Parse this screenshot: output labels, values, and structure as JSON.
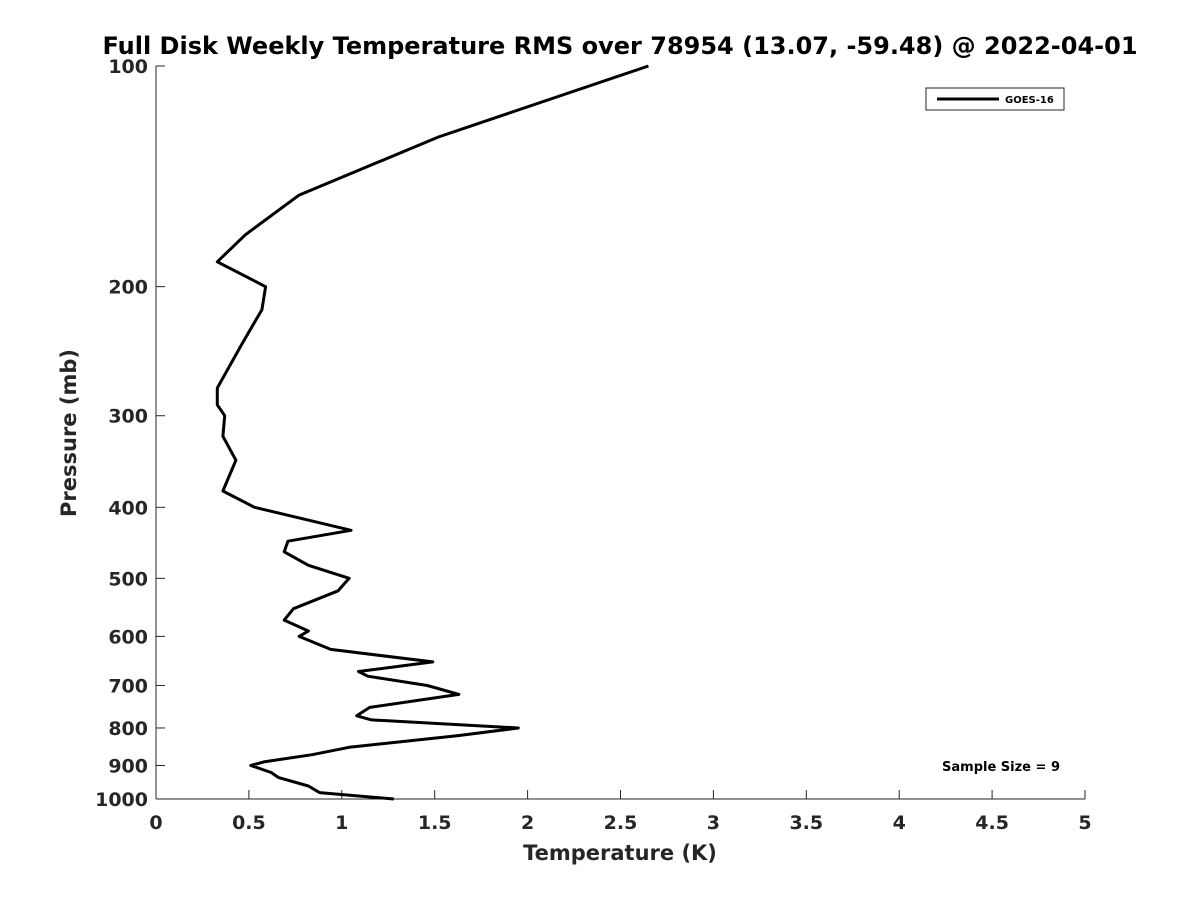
{
  "chart_data": {
    "type": "line",
    "title": "Full Disk Weekly Temperature RMS over 78954 (13.07, -59.48) @ 2022-04-01",
    "xlabel": "Temperature (K)",
    "ylabel": "Pressure (mb)",
    "xlim": [
      0,
      5
    ],
    "ylim": [
      100,
      1000
    ],
    "yscale": "log",
    "yreversed": true,
    "x_ticks": [
      "0",
      "0.5",
      "1",
      "1.5",
      "2",
      "2.5",
      "3",
      "3.5",
      "4",
      "4.5",
      "5"
    ],
    "y_ticks": [
      "100",
      "200",
      "300",
      "400",
      "500",
      "600",
      "700",
      "800",
      "900",
      "1000"
    ],
    "grid": false,
    "legend_position": "top-right",
    "annotation": "Sample Size = 9",
    "series": [
      {
        "name": "GOES-16",
        "color": "#000000",
        "points": [
          [
            2.65,
            100
          ],
          [
            1.52,
            125
          ],
          [
            0.77,
            150
          ],
          [
            0.48,
            170
          ],
          [
            0.33,
            185
          ],
          [
            0.59,
            200
          ],
          [
            0.57,
            215
          ],
          [
            0.46,
            240
          ],
          [
            0.33,
            275
          ],
          [
            0.33,
            290
          ],
          [
            0.37,
            300
          ],
          [
            0.36,
            320
          ],
          [
            0.43,
            345
          ],
          [
            0.36,
            380
          ],
          [
            0.53,
            400
          ],
          [
            1.05,
            430
          ],
          [
            0.71,
            445
          ],
          [
            0.69,
            460
          ],
          [
            0.82,
            480
          ],
          [
            1.04,
            500
          ],
          [
            0.98,
            520
          ],
          [
            0.74,
            550
          ],
          [
            0.69,
            570
          ],
          [
            0.82,
            590
          ],
          [
            0.77,
            600
          ],
          [
            0.94,
            625
          ],
          [
            1.49,
            650
          ],
          [
            1.09,
            670
          ],
          [
            1.14,
            680
          ],
          [
            1.46,
            700
          ],
          [
            1.63,
            720
          ],
          [
            1.15,
            750
          ],
          [
            1.08,
            770
          ],
          [
            1.16,
            780
          ],
          [
            1.95,
            800
          ],
          [
            1.62,
            820
          ],
          [
            1.04,
            850
          ],
          [
            0.84,
            870
          ],
          [
            0.58,
            890
          ],
          [
            0.51,
            900
          ],
          [
            0.62,
            920
          ],
          [
            0.66,
            935
          ],
          [
            0.82,
            960
          ],
          [
            0.88,
            980
          ],
          [
            1.28,
            1000
          ]
        ]
      }
    ]
  }
}
